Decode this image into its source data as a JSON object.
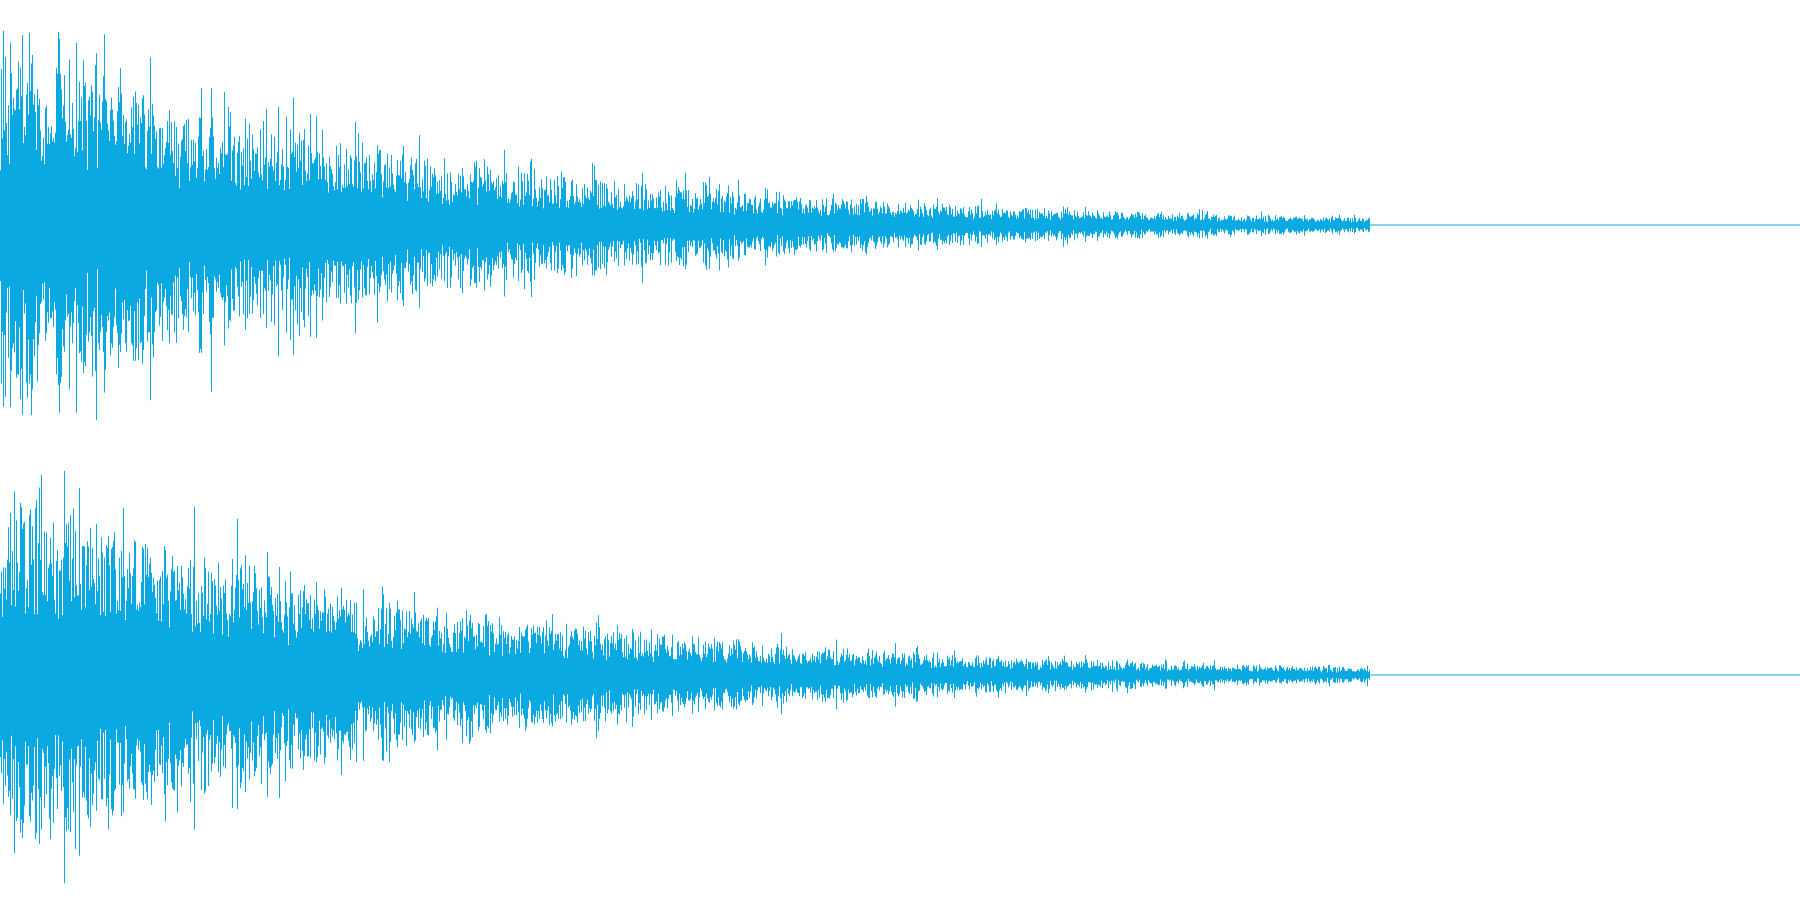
{
  "waveform": {
    "color": "#0aa9e1",
    "channels": [
      {
        "name": ""
      },
      {
        "name": ""
      }
    ]
  }
}
